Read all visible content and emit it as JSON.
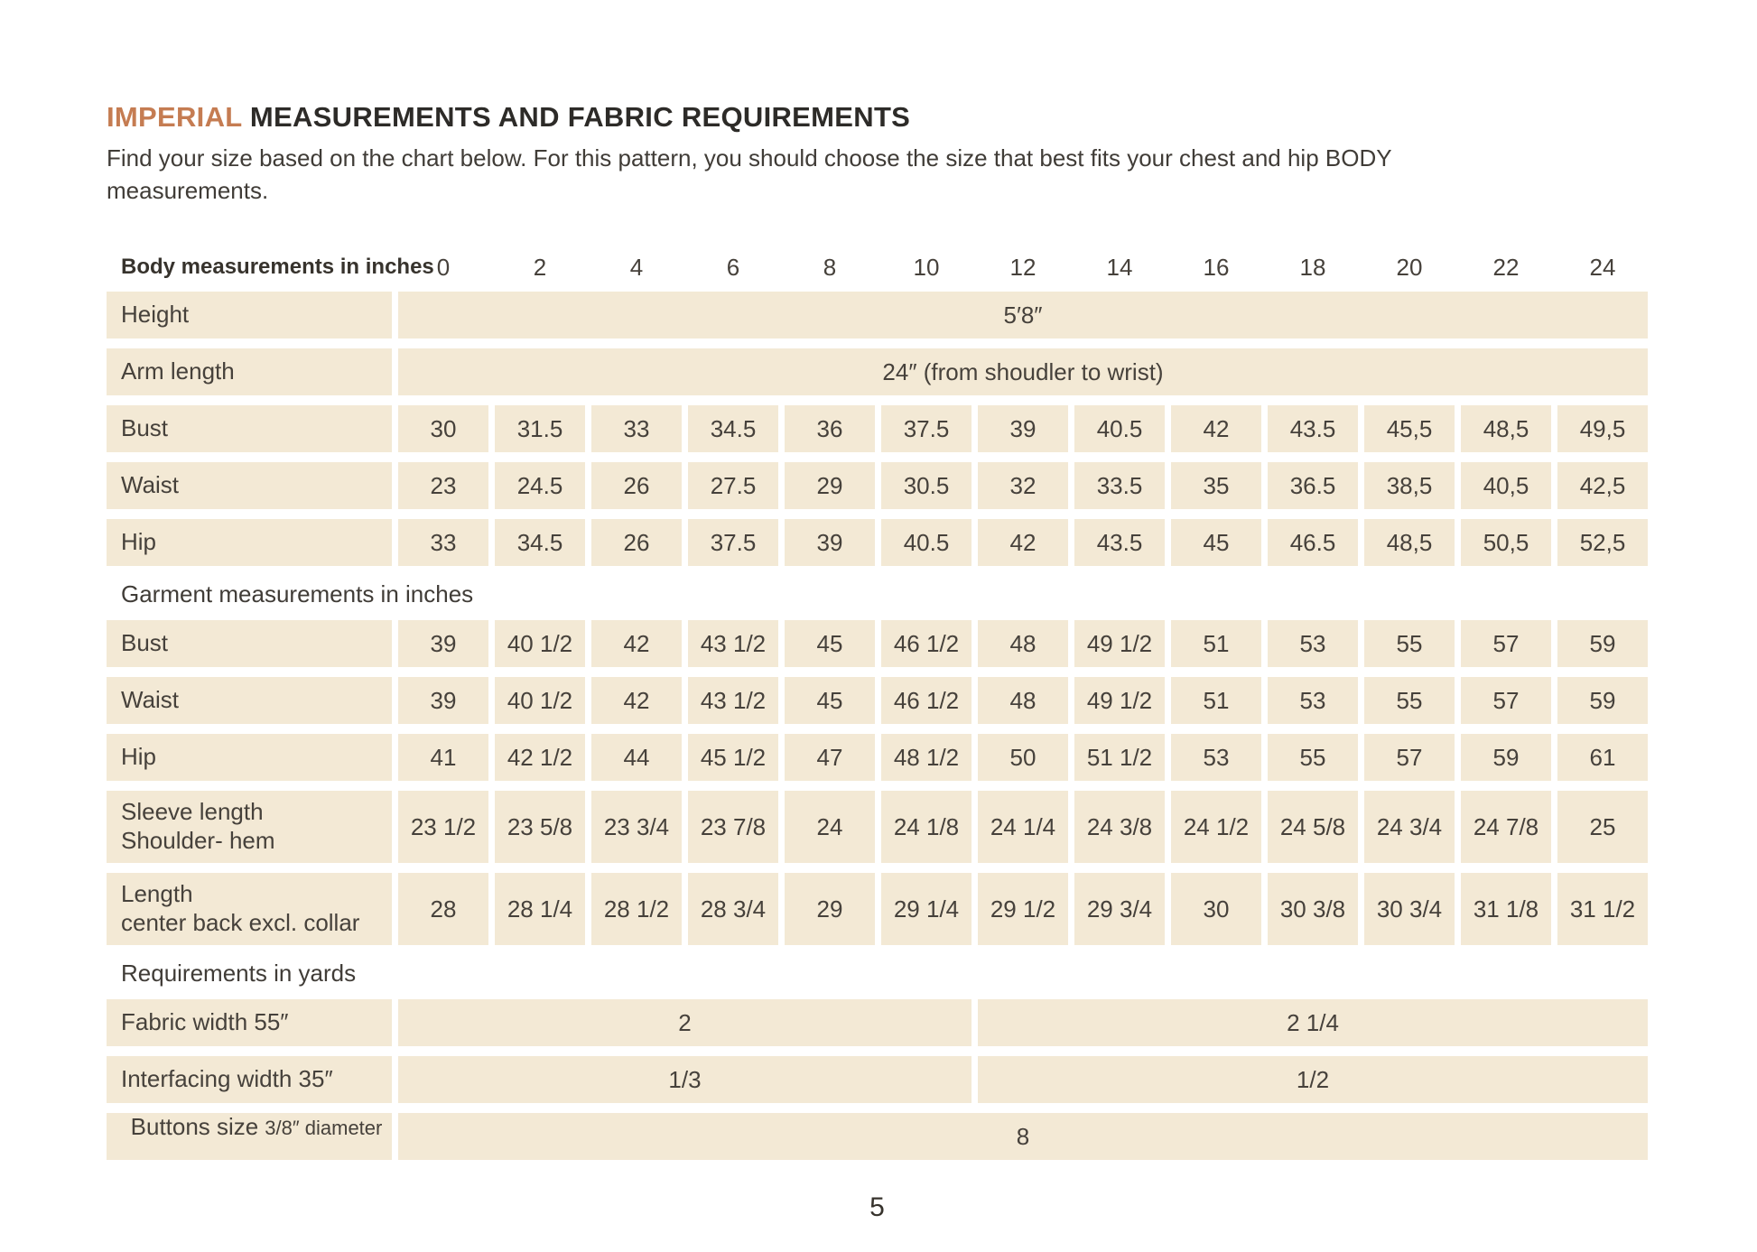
{
  "header": {
    "title_accent": "IMPERIAL",
    "title_rest": " MEASUREMENTS AND FABRIC REQUIREMENTS",
    "subtitle_line1": "Find your size based on the chart below. For this pattern, you should choose the size that best fits your chest and hip BODY",
    "subtitle_line2": "measurements."
  },
  "colors": {
    "accent_orange": "#c57c52",
    "cell_beige": "#f3e9d5",
    "text_dark": "#403c37"
  },
  "table": {
    "header_label": "Body measurements in inches",
    "sizes": [
      "0",
      "2",
      "4",
      "6",
      "8",
      "10",
      "12",
      "14",
      "16",
      "18",
      "20",
      "22",
      "24"
    ],
    "body_rows": [
      {
        "label": "Height",
        "span_value": "5′8″"
      },
      {
        "label": "Arm length",
        "span_value": "24″ (from shoudler to wrist)"
      },
      {
        "label": "Bust",
        "values": [
          "30",
          "31.5",
          "33",
          "34.5",
          "36",
          "37.5",
          "39",
          "40.5",
          "42",
          "43.5",
          "45,5",
          "48,5",
          "49,5"
        ]
      },
      {
        "label": "Waist",
        "values": [
          "23",
          "24.5",
          "26",
          "27.5",
          "29",
          "30.5",
          "32",
          "33.5",
          "35",
          "36.5",
          "38,5",
          "40,5",
          "42,5"
        ]
      },
      {
        "label": "Hip",
        "values": [
          "33",
          "34.5",
          "26",
          "37.5",
          "39",
          "40.5",
          "42",
          "43.5",
          "45",
          "46.5",
          "48,5",
          "50,5",
          "52,5"
        ]
      }
    ],
    "garment_header": "Garment measurements in inches",
    "garment_rows": [
      {
        "label": "Bust",
        "values": [
          "39",
          "40 1/2",
          "42",
          "43 1/2",
          "45",
          "46 1/2",
          "48",
          "49 1/2",
          "51",
          "53",
          "55",
          "57",
          "59"
        ]
      },
      {
        "label": "Waist",
        "values": [
          "39",
          "40 1/2",
          "42",
          "43 1/2",
          "45",
          "46 1/2",
          "48",
          "49 1/2",
          "51",
          "53",
          "55",
          "57",
          "59"
        ]
      },
      {
        "label": "Hip",
        "values": [
          "41",
          "42 1/2",
          "44",
          "45 1/2",
          "47",
          "48 1/2",
          "50",
          "51 1/2",
          "53",
          "55",
          "57",
          "59",
          "61"
        ]
      },
      {
        "label": "Sleeve length",
        "label2": "Shoulder- hem",
        "values": [
          "23 1/2",
          "23 5/8",
          "23 3/4",
          "23 7/8",
          "24",
          "24 1/8",
          "24 1/4",
          "24 3/8",
          "24 1/2",
          "24 5/8",
          "24 3/4",
          "24 7/8",
          "25"
        ]
      },
      {
        "label": "Length",
        "label2": "center back excl. collar",
        "values": [
          "28",
          "28 1/4",
          "28 1/2",
          "28 3/4",
          "29",
          "29 1/4",
          "29 1/2",
          "29 3/4",
          "30",
          "30 3/8",
          "30 3/4",
          "31 1/8",
          "31 1/2"
        ]
      }
    ],
    "requirements_header": "Requirements in yards",
    "requirement_rows": [
      {
        "label": "Fabric width 55″",
        "left": "2",
        "right": "2 1/4"
      },
      {
        "label": "Interfacing width 35″",
        "left": "1/3",
        "right": "1/2"
      },
      {
        "label": "Buttons size",
        "label_small": "3/8″ diameter",
        "span_value": "8"
      }
    ]
  },
  "footer": {
    "page_number": "5"
  }
}
